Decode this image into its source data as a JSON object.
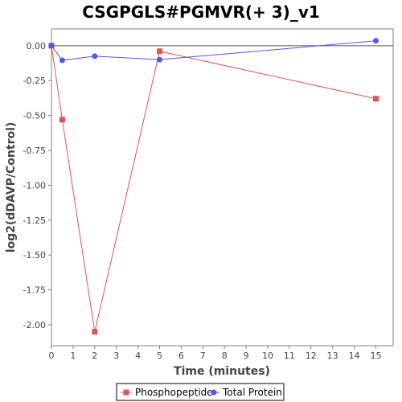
{
  "chart_data": {
    "type": "line",
    "title": "CSGPGLS#PGMVR(+ 3)_v1",
    "xlabel": "Time (minutes)",
    "ylabel": "log2(dDAVP/Control)",
    "xlim": [
      0,
      15.8
    ],
    "ylim": [
      -2.15,
      0.12
    ],
    "x_ticks": [
      0,
      1,
      2,
      3,
      4,
      5,
      6,
      7,
      8,
      9,
      10,
      11,
      12,
      13,
      14,
      15
    ],
    "y_ticks": [
      0.0,
      -0.25,
      -0.5,
      -0.75,
      -1.0,
      -1.25,
      -1.5,
      -1.75,
      -2.0
    ],
    "y_tick_labels": [
      "0.00",
      "-0.25",
      "-0.50",
      "-0.75",
      "-1.00",
      "-1.25",
      "-1.50",
      "-1.75",
      "-2.00"
    ],
    "grid": false,
    "legend_position": "bottom",
    "series": [
      {
        "name": "Phosphopeptide",
        "color": "#e05555",
        "marker": "square",
        "x": [
          0,
          0.5,
          2,
          5,
          15
        ],
        "y": [
          0.0,
          -0.53,
          -2.05,
          -0.04,
          -0.38
        ]
      },
      {
        "name": "Total Protein",
        "color": "#5555e8",
        "marker": "circle",
        "x": [
          0,
          0.5,
          2,
          5,
          15
        ],
        "y": [
          0.0,
          -0.105,
          -0.075,
          -0.1,
          0.035
        ]
      }
    ]
  }
}
